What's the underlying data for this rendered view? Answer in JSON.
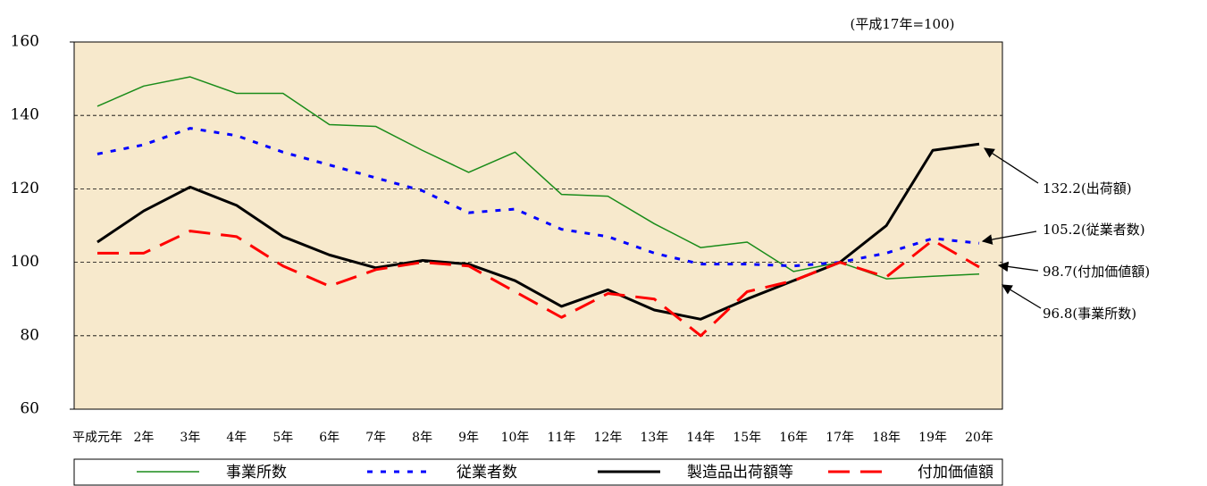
{
  "chart_data": {
    "type": "line",
    "subtitle": "(平成17年=100)",
    "categories": [
      "平成元年",
      "2年",
      "3年",
      "4年",
      "5年",
      "6年",
      "7年",
      "8年",
      "9年",
      "10年",
      "11年",
      "12年",
      "13年",
      "14年",
      "15年",
      "16年",
      "17年",
      "18年",
      "19年",
      "20年"
    ],
    "series": [
      {
        "name": "事業所数",
        "color": "#1a8c1a",
        "values": [
          142.5,
          148,
          150.5,
          146,
          146,
          137.5,
          137,
          130.5,
          124.5,
          130,
          118.5,
          118,
          110.5,
          104,
          105.5,
          97.5,
          100,
          95.5,
          96.2,
          96.8
        ]
      },
      {
        "name": "従業者数",
        "color": "#0000ff",
        "values": [
          129.5,
          132,
          136.5,
          134.5,
          130,
          126.5,
          123,
          119.5,
          113.5,
          114.5,
          109,
          107,
          102.5,
          99.5,
          99.5,
          99,
          100,
          102.5,
          106.5,
          105.2
        ]
      },
      {
        "name": "製造品出荷額等",
        "color": "#000000",
        "values": [
          105.5,
          114,
          120.5,
          115.5,
          107,
          102,
          98.5,
          100.5,
          99.5,
          95,
          88,
          92.5,
          87,
          84.5,
          90,
          95,
          100,
          110,
          130.5,
          132.2
        ]
      },
      {
        "name": "付加価値額",
        "color": "#ff0000",
        "values": [
          102.5,
          102.5,
          108.5,
          107,
          99,
          93.5,
          98,
          100,
          99,
          92,
          85,
          91.5,
          90,
          80,
          92,
          95,
          100,
          96,
          106,
          98.7
        ]
      }
    ],
    "annotations": [
      "132.2(出荷額)",
      "105.2(従業者数)",
      "98.7(付加価値額)",
      "96.8(事業所数)"
    ],
    "ylim": [
      60,
      160
    ],
    "yticks": [
      60,
      80,
      100,
      120,
      140,
      160
    ],
    "grid": true
  }
}
